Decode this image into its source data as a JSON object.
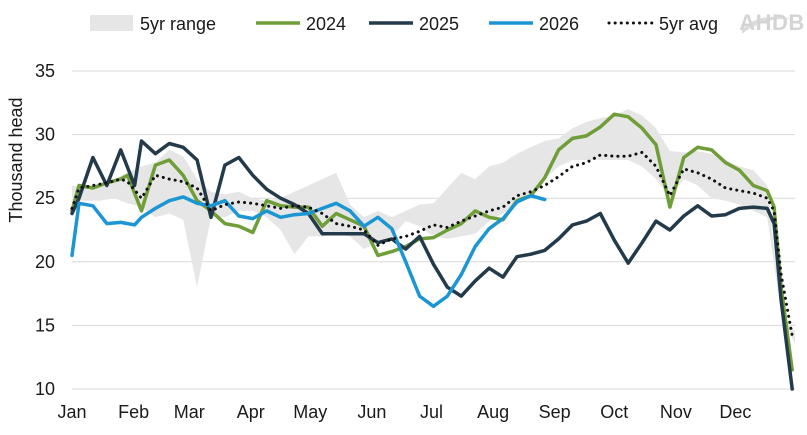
{
  "chart_data": {
    "type": "line",
    "ylabel": "Thousand head",
    "ylim": [
      10,
      35
    ],
    "yticks": [
      10,
      15,
      20,
      25,
      30,
      35
    ],
    "xlim": [
      0,
      52
    ],
    "xticks": [
      {
        "label": "Jan",
        "week": 0
      },
      {
        "label": "Feb",
        "week": 4.43
      },
      {
        "label": "Mar",
        "week": 8.43
      },
      {
        "label": "Apr",
        "week": 12.86
      },
      {
        "label": "May",
        "week": 17.14
      },
      {
        "label": "Jun",
        "week": 21.57
      },
      {
        "label": "Jul",
        "week": 25.86
      },
      {
        "label": "Aug",
        "week": 30.29
      },
      {
        "label": "Sep",
        "week": 34.71
      },
      {
        "label": "Oct",
        "week": 39
      },
      {
        "label": "Nov",
        "week": 43.43
      },
      {
        "label": "Dec",
        "week": 47.71
      }
    ],
    "grid": "horizontal",
    "legend": {
      "placement": "top",
      "entries": [
        {
          "name": "5yr range",
          "style": "band",
          "color": "#e6e6e6"
        },
        {
          "name": "2024",
          "style": "line",
          "color": "#6f9d38"
        },
        {
          "name": "2025",
          "style": "line",
          "color": "#233a4a"
        },
        {
          "name": "2026",
          "style": "line",
          "color": "#1b96d3"
        },
        {
          "name": "5yr avg",
          "style": "dotted",
          "color": "#111111"
        }
      ]
    },
    "logo": "AHDB",
    "range_band": {
      "name": "5yr range",
      "x": [
        0,
        1,
        2,
        3,
        4,
        5,
        6,
        7,
        8,
        9,
        10,
        11,
        12,
        13,
        14,
        15,
        16,
        17,
        18,
        19,
        20,
        21,
        22,
        23,
        24,
        25,
        26,
        27,
        28,
        29,
        30,
        31,
        32,
        33,
        34,
        35,
        36,
        37,
        38,
        39,
        40,
        41,
        42,
        43,
        44,
        45,
        46,
        47,
        48,
        49,
        50,
        51,
        52
      ],
      "low": [
        24.8,
        24.8,
        24.8,
        25.0,
        24.6,
        24.3,
        23.5,
        23.8,
        23.3,
        18.0,
        23.5,
        23.5,
        24.0,
        24.0,
        23.5,
        22.5,
        20.6,
        22.0,
        22.0,
        22.2,
        22.0,
        21.0,
        21.6,
        22.0,
        23.2,
        22.8,
        22.0,
        21.8,
        22.0,
        22.2,
        23.2,
        23.8,
        24.5,
        25.5,
        26.5,
        27.5,
        28.0,
        28.0,
        28.0,
        28.0,
        28.0,
        27.5,
        26.5,
        25.0,
        26.5,
        26.0,
        25.0,
        24.8,
        24.5,
        24.0,
        23.5,
        16.0,
        13.5
      ],
      "high": [
        26.0,
        25.8,
        26.2,
        26.5,
        27.0,
        27.5,
        27.8,
        28.8,
        28.3,
        26.5,
        25.5,
        25.3,
        25.5,
        25.0,
        24.8,
        25.0,
        25.5,
        26.0,
        26.5,
        27.0,
        24.5,
        23.5,
        24.0,
        23.5,
        24.0,
        24.5,
        24.6,
        25.8,
        27.0,
        26.5,
        27.5,
        27.8,
        28.5,
        29.0,
        29.5,
        29.7,
        30.5,
        31.0,
        31.3,
        31.5,
        32.0,
        31.5,
        30.5,
        28.7,
        28.6,
        28.7,
        28.5,
        28.0,
        27.5,
        27.2,
        26.0,
        16.0,
        14.5
      ]
    },
    "series": [
      {
        "name": "2024",
        "color": "#6f9d38",
        "x": [
          0,
          0.5,
          1.5,
          2.5,
          3.5,
          4,
          5,
          6,
          7,
          8,
          9,
          10,
          11,
          12,
          13,
          14,
          15,
          16,
          17,
          18,
          19,
          20,
          21,
          22,
          23,
          24,
          25,
          26,
          27,
          28,
          29,
          30,
          31,
          32,
          33,
          34,
          35,
          36,
          37,
          38,
          39,
          40,
          41,
          42,
          43,
          44,
          45,
          46,
          47,
          48,
          49,
          50,
          50.5,
          51,
          51.8
        ],
        "y": [
          24.0,
          26.0,
          25.8,
          26.2,
          26.5,
          26.8,
          24.0,
          27.6,
          28.0,
          26.8,
          24.8,
          24.0,
          23.0,
          22.8,
          22.3,
          24.8,
          24.4,
          24.3,
          24.3,
          22.8,
          23.8,
          23.3,
          22.8,
          20.5,
          20.8,
          21.2,
          21.8,
          21.9,
          22.5,
          23.0,
          24.0,
          23.5,
          23.3,
          24.8,
          25.2,
          26.6,
          28.8,
          29.7,
          29.9,
          30.6,
          31.6,
          31.4,
          30.5,
          29.2,
          24.3,
          28.2,
          29.0,
          28.8,
          27.8,
          27.2,
          26.0,
          25.6,
          24.3,
          18.0,
          11.5
        ]
      },
      {
        "name": "2025",
        "color": "#233a4a",
        "x": [
          0,
          0.5,
          1.5,
          2.5,
          3.5,
          4.5,
          5,
          6,
          7,
          8,
          9,
          10,
          11,
          12,
          13,
          14,
          15,
          16,
          17,
          18,
          19,
          20,
          21,
          22,
          23,
          24,
          25,
          26,
          27,
          28,
          29,
          30,
          31,
          32,
          33,
          34,
          35,
          36,
          37,
          38,
          39,
          40,
          41,
          42,
          43,
          44,
          45,
          46,
          47,
          48,
          49,
          50,
          50.5,
          51,
          51.8
        ],
        "y": [
          23.8,
          25.0,
          28.2,
          26.0,
          28.8,
          26.0,
          29.5,
          28.5,
          29.3,
          29.0,
          28.0,
          23.5,
          27.6,
          28.2,
          26.8,
          25.7,
          25.0,
          24.5,
          23.8,
          22.2,
          22.2,
          22.2,
          22.2,
          21.5,
          21.8,
          21.0,
          22.0,
          19.8,
          18.0,
          17.3,
          18.5,
          19.5,
          18.8,
          20.4,
          20.6,
          20.9,
          21.8,
          22.9,
          23.2,
          23.8,
          21.7,
          19.9,
          21.5,
          23.2,
          22.5,
          23.6,
          24.4,
          23.6,
          23.7,
          24.2,
          24.3,
          24.2,
          23.0,
          17.0,
          10.0
        ]
      },
      {
        "name": "2026",
        "color": "#1b96d3",
        "x": [
          0,
          0.5,
          1.5,
          2.5,
          3.5,
          4.5,
          5,
          6,
          7,
          8,
          9,
          10,
          11,
          12,
          13,
          14,
          15,
          16,
          17,
          18,
          19,
          20,
          21,
          22,
          23,
          24,
          25,
          26,
          27,
          28,
          29,
          30,
          31,
          32,
          33,
          34
        ],
        "y": [
          20.5,
          24.6,
          24.4,
          23.0,
          23.1,
          22.9,
          23.5,
          24.2,
          24.8,
          25.1,
          24.6,
          24.4,
          24.8,
          23.6,
          23.4,
          24.0,
          23.5,
          23.7,
          23.8,
          24.2,
          24.6,
          24.0,
          22.8,
          23.5,
          22.6,
          20.0,
          17.3,
          16.5,
          17.3,
          19.0,
          21.2,
          22.6,
          23.4,
          24.7,
          25.2,
          24.9
        ]
      },
      {
        "name": "5yr avg",
        "color": "#111111",
        "x": [
          0,
          0.5,
          1.5,
          2.5,
          3.5,
          4,
          5,
          6,
          7,
          8,
          9,
          10,
          11,
          12,
          13,
          14,
          15,
          16,
          17,
          18,
          19,
          20,
          21,
          22,
          23,
          24,
          25,
          26,
          27,
          28,
          29,
          30,
          31,
          32,
          33,
          34,
          35,
          36,
          37,
          38,
          39,
          40,
          41,
          42,
          43,
          44,
          45,
          46,
          47,
          48,
          49,
          50,
          50.5,
          51,
          51.8
        ],
        "y": [
          24.2,
          25.8,
          26.0,
          26.2,
          26.5,
          26.3,
          25.0,
          26.8,
          26.5,
          26.3,
          25.8,
          24.0,
          24.5,
          24.7,
          24.6,
          24.4,
          24.2,
          24.4,
          24.3,
          23.8,
          23.0,
          22.8,
          22.5,
          21.3,
          21.8,
          22.0,
          22.4,
          22.9,
          22.7,
          23.2,
          23.6,
          24.0,
          24.3,
          25.2,
          25.5,
          26.0,
          26.7,
          27.5,
          27.8,
          28.4,
          28.3,
          28.3,
          28.6,
          27.5,
          25.2,
          27.3,
          27.0,
          26.5,
          25.8,
          25.6,
          25.4,
          25.0,
          24.0,
          19.0,
          14.2
        ]
      }
    ]
  }
}
